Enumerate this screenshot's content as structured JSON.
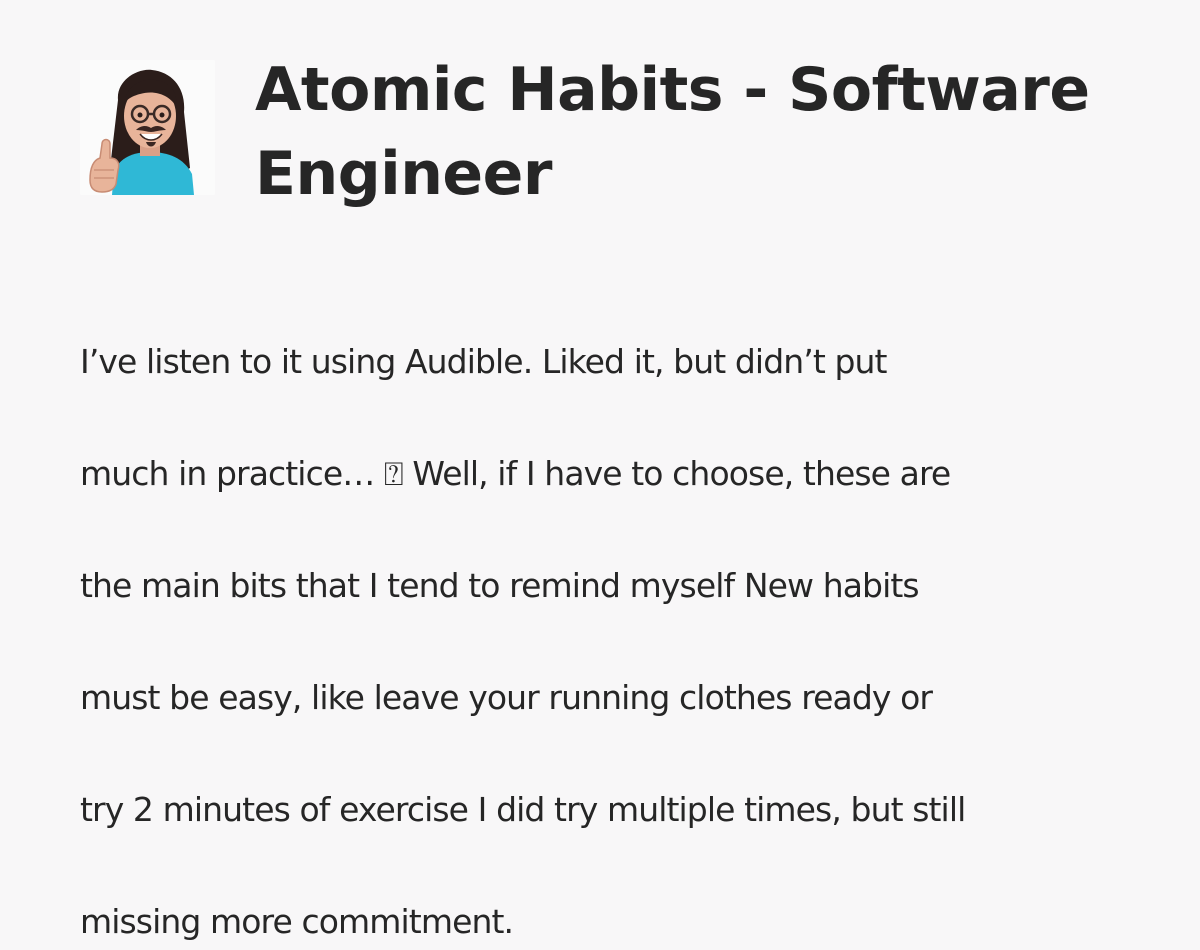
{
  "post": {
    "title_line1": "Atomic Habits - Software",
    "title_line2": "Engineer",
    "body_lines": [
      "I’ve listen to it using Audible. Liked it, but didn’t put",
      "much in practice… ⍰ Well, if I have to choose, these are",
      "the main bits that I tend to remind myself New habits",
      "must be easy, like leave your running clothes ready or",
      "try 2 minutes of exercise I did try multiple times, but still",
      "missing more commitment."
    ]
  },
  "avatar": {
    "icon": "cartoon-avatar-thumbs-up-icon",
    "shirt_color": "#2fb8d6",
    "hair_color": "#2b1d1a",
    "skin_color": "#e8b49a"
  }
}
